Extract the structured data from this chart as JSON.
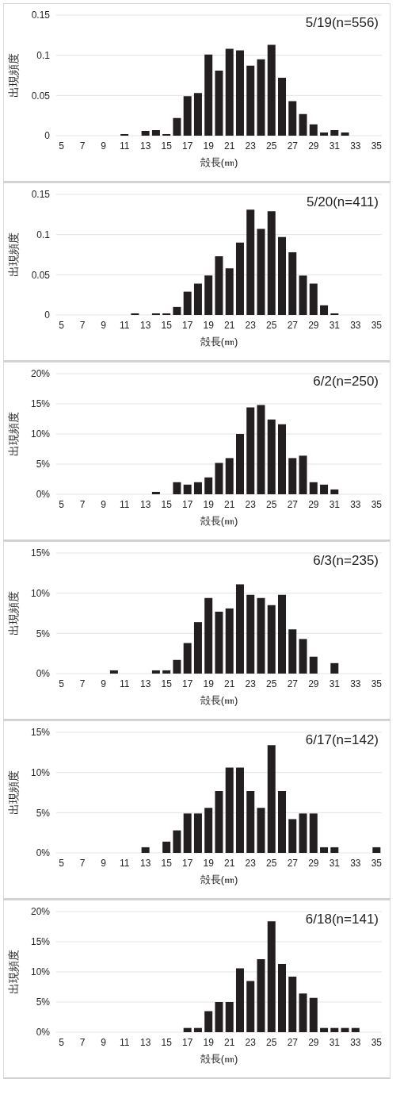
{
  "chart_data": [
    {
      "type": "bar",
      "title": "5/19(n=556)",
      "xlabel": "殻長(㎜)",
      "ylabel": "出現頻度",
      "categories": [
        "5",
        null,
        "7",
        null,
        "9",
        null,
        "11",
        null,
        "13",
        null,
        "15",
        null,
        "17",
        null,
        "19",
        null,
        "21",
        null,
        "23",
        null,
        "25",
        null,
        "27",
        null,
        "29",
        null,
        "31",
        null,
        "33",
        null,
        "35"
      ],
      "values": [
        0,
        0,
        0,
        0,
        0,
        0,
        0.002,
        0,
        0.006,
        0.007,
        0.002,
        0.022,
        0.049,
        0.053,
        0.101,
        0.081,
        0.108,
        0.106,
        0.087,
        0.095,
        0.113,
        0.072,
        0.043,
        0.027,
        0.014,
        0.004,
        0.007,
        0.004,
        0,
        0,
        0
      ],
      "color": "#231f20",
      "ylim": [
        0,
        0.15
      ],
      "yticks": [
        0,
        0.05,
        0.1,
        0.15
      ],
      "grid": "y"
    },
    {
      "type": "bar",
      "title": "5/20(n=411)",
      "xlabel": "殻長(㎜)",
      "ylabel": "出現頻度",
      "categories": [
        "5",
        null,
        "7",
        null,
        "9",
        null,
        "11",
        null,
        "13",
        null,
        "15",
        null,
        "17",
        null,
        "19",
        null,
        "21",
        null,
        "23",
        null,
        "25",
        null,
        "27",
        null,
        "29",
        null,
        "31",
        null,
        "33",
        null,
        "35"
      ],
      "values": [
        0,
        0,
        0,
        0,
        0,
        0,
        0,
        0.002,
        0,
        0.002,
        0.002,
        0.01,
        0.029,
        0.039,
        0.049,
        0.073,
        0.058,
        0.09,
        0.131,
        0.107,
        0.129,
        0.097,
        0.078,
        0.049,
        0.039,
        0.012,
        0.002,
        0,
        0,
        0,
        0
      ],
      "color": "#231f20",
      "ylim": [
        0,
        0.15
      ],
      "yticks": [
        0,
        0.05,
        0.1,
        0.15
      ],
      "grid": "y"
    },
    {
      "type": "bar",
      "title": "6/2(n=250)",
      "xlabel": "殻長(㎜)",
      "ylabel": "出現頻度",
      "categories": [
        "5",
        null,
        "7",
        null,
        "9",
        null,
        "11",
        null,
        "13",
        null,
        "15",
        null,
        "17",
        null,
        "19",
        null,
        "21",
        null,
        "23",
        null,
        "25",
        null,
        "27",
        null,
        "29",
        null,
        "31",
        null,
        "33",
        null,
        "35"
      ],
      "values": [
        0,
        0,
        0,
        0,
        0,
        0,
        0,
        0,
        0,
        0.4,
        0,
        2.0,
        1.6,
        2.0,
        2.8,
        5.2,
        6.0,
        10.0,
        14.4,
        14.8,
        12.4,
        11.6,
        6.0,
        6.4,
        2.0,
        1.6,
        0.8,
        0,
        0,
        0,
        0
      ],
      "color": "#231f20",
      "ylim": [
        0,
        20
      ],
      "yticks": [
        {
          "value": 0,
          "label": "0%"
        },
        {
          "value": 5,
          "label": "5%"
        },
        {
          "value": 10,
          "label": "10%"
        },
        {
          "value": 15,
          "label": "15%"
        },
        {
          "value": 20,
          "label": "20%"
        }
      ],
      "grid": "y"
    },
    {
      "type": "bar",
      "title": "6/3(n=235)",
      "xlabel": "殻長(㎜)",
      "ylabel": "出現頻度",
      "categories": [
        "5",
        null,
        "7",
        null,
        "9",
        null,
        "11",
        null,
        "13",
        null,
        "15",
        null,
        "17",
        null,
        "19",
        null,
        "21",
        null,
        "23",
        null,
        "25",
        null,
        "27",
        null,
        "29",
        null,
        "31",
        null,
        "33",
        null,
        "35"
      ],
      "values": [
        0,
        0,
        0,
        0,
        0,
        0.4,
        0,
        0,
        0,
        0.4,
        0.4,
        1.7,
        3.8,
        6.4,
        9.4,
        7.7,
        8.1,
        11.1,
        9.8,
        9.4,
        8.5,
        9.8,
        5.5,
        4.3,
        2.1,
        0,
        1.3,
        0,
        0,
        0,
        0
      ],
      "color": "#231f20",
      "ylim": [
        0,
        15
      ],
      "yticks": [
        {
          "value": 0,
          "label": "0%"
        },
        {
          "value": 5,
          "label": "5%"
        },
        {
          "value": 10,
          "label": "10%"
        },
        {
          "value": 15,
          "label": "15%"
        }
      ],
      "grid": "y"
    },
    {
      "type": "bar",
      "title": "6/17(n=142)",
      "xlabel": "殻長(㎜)",
      "ylabel": "出現頻度",
      "categories": [
        "5",
        null,
        "7",
        null,
        "9",
        null,
        "11",
        null,
        "13",
        null,
        "15",
        null,
        "17",
        null,
        "19",
        null,
        "21",
        null,
        "23",
        null,
        "25",
        null,
        "27",
        null,
        "29",
        null,
        "31",
        null,
        "33",
        null,
        "35"
      ],
      "values": [
        0,
        0,
        0,
        0,
        0,
        0,
        0,
        0,
        0.7,
        0,
        1.4,
        2.8,
        4.9,
        4.9,
        5.6,
        7.7,
        10.6,
        10.6,
        7.7,
        5.6,
        13.4,
        7.7,
        4.2,
        4.9,
        4.9,
        0.7,
        0.7,
        0,
        0,
        0,
        0.7
      ],
      "color": "#231f20",
      "ylim": [
        0,
        15
      ],
      "yticks": [
        {
          "value": 0,
          "label": "0%"
        },
        {
          "value": 5,
          "label": "5%"
        },
        {
          "value": 10,
          "label": "10%"
        },
        {
          "value": 15,
          "label": "15%"
        }
      ],
      "grid": "y"
    },
    {
      "type": "bar",
      "title": "6/18(n=141)",
      "xlabel": "殻長(㎜)",
      "ylabel": "出現頻度",
      "categories": [
        "5",
        null,
        "7",
        null,
        "9",
        null,
        "11",
        null,
        "13",
        null,
        "15",
        null,
        "17",
        null,
        "19",
        null,
        "21",
        null,
        "23",
        null,
        "25",
        null,
        "27",
        null,
        "29",
        null,
        "31",
        null,
        "33",
        null,
        "35"
      ],
      "values": [
        0,
        0,
        0,
        0,
        0,
        0,
        0,
        0,
        0,
        0,
        0,
        0,
        0.7,
        0.7,
        3.5,
        5.0,
        5.0,
        10.6,
        8.5,
        12.1,
        18.4,
        11.3,
        9.2,
        6.4,
        5.7,
        0.7,
        0.7,
        0.7,
        0.7,
        0,
        0
      ],
      "color": "#231f20",
      "ylim": [
        0,
        20
      ],
      "yticks": [
        {
          "value": 0,
          "label": "0%"
        },
        {
          "value": 5,
          "label": "5%"
        },
        {
          "value": 10,
          "label": "10%"
        },
        {
          "value": 15,
          "label": "15%"
        },
        {
          "value": 20,
          "label": "20%"
        }
      ],
      "grid": "y"
    }
  ]
}
